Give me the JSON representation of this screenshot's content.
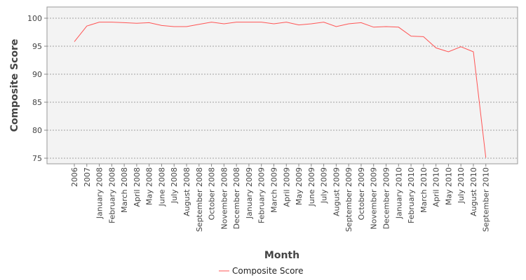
{
  "chart_data": {
    "type": "line",
    "title": "",
    "xlabel": "Month",
    "ylabel": "Composite Score",
    "ylim": [
      74,
      102
    ],
    "yticks": [
      75,
      80,
      85,
      90,
      95,
      100
    ],
    "grid": true,
    "legend_position": "bottom-center",
    "categories": [
      "2006",
      "2007",
      "January 2008",
      "February 2008",
      "March 2008",
      "April 2008",
      "May 2008",
      "June 2008",
      "July 2008",
      "August 2008",
      "September 2008",
      "October 2008",
      "November 2008",
      "December 2008",
      "January 2009",
      "February 2009",
      "March 2009",
      "April 2009",
      "May 2009",
      "June 2009",
      "July 2009",
      "August 2009",
      "September 2009",
      "October 2009",
      "November 2009",
      "December 2009",
      "January 2010",
      "February 2010",
      "March 2010",
      "April 2010",
      "May 2010",
      "July 2010",
      "August 2010",
      "September 2010"
    ],
    "series": [
      {
        "name": "Composite Score",
        "color": "#ff5555",
        "values": [
          95.8,
          98.6,
          99.3,
          99.3,
          99.2,
          99.1,
          99.2,
          98.7,
          98.5,
          98.5,
          98.9,
          99.3,
          99.0,
          99.3,
          99.3,
          99.3,
          99.0,
          99.3,
          98.8,
          99.0,
          99.3,
          98.5,
          99.0,
          99.2,
          98.4,
          98.5,
          98.4,
          96.8,
          96.7,
          94.7,
          94.0,
          94.9,
          94.0,
          75.1
        ]
      }
    ]
  }
}
